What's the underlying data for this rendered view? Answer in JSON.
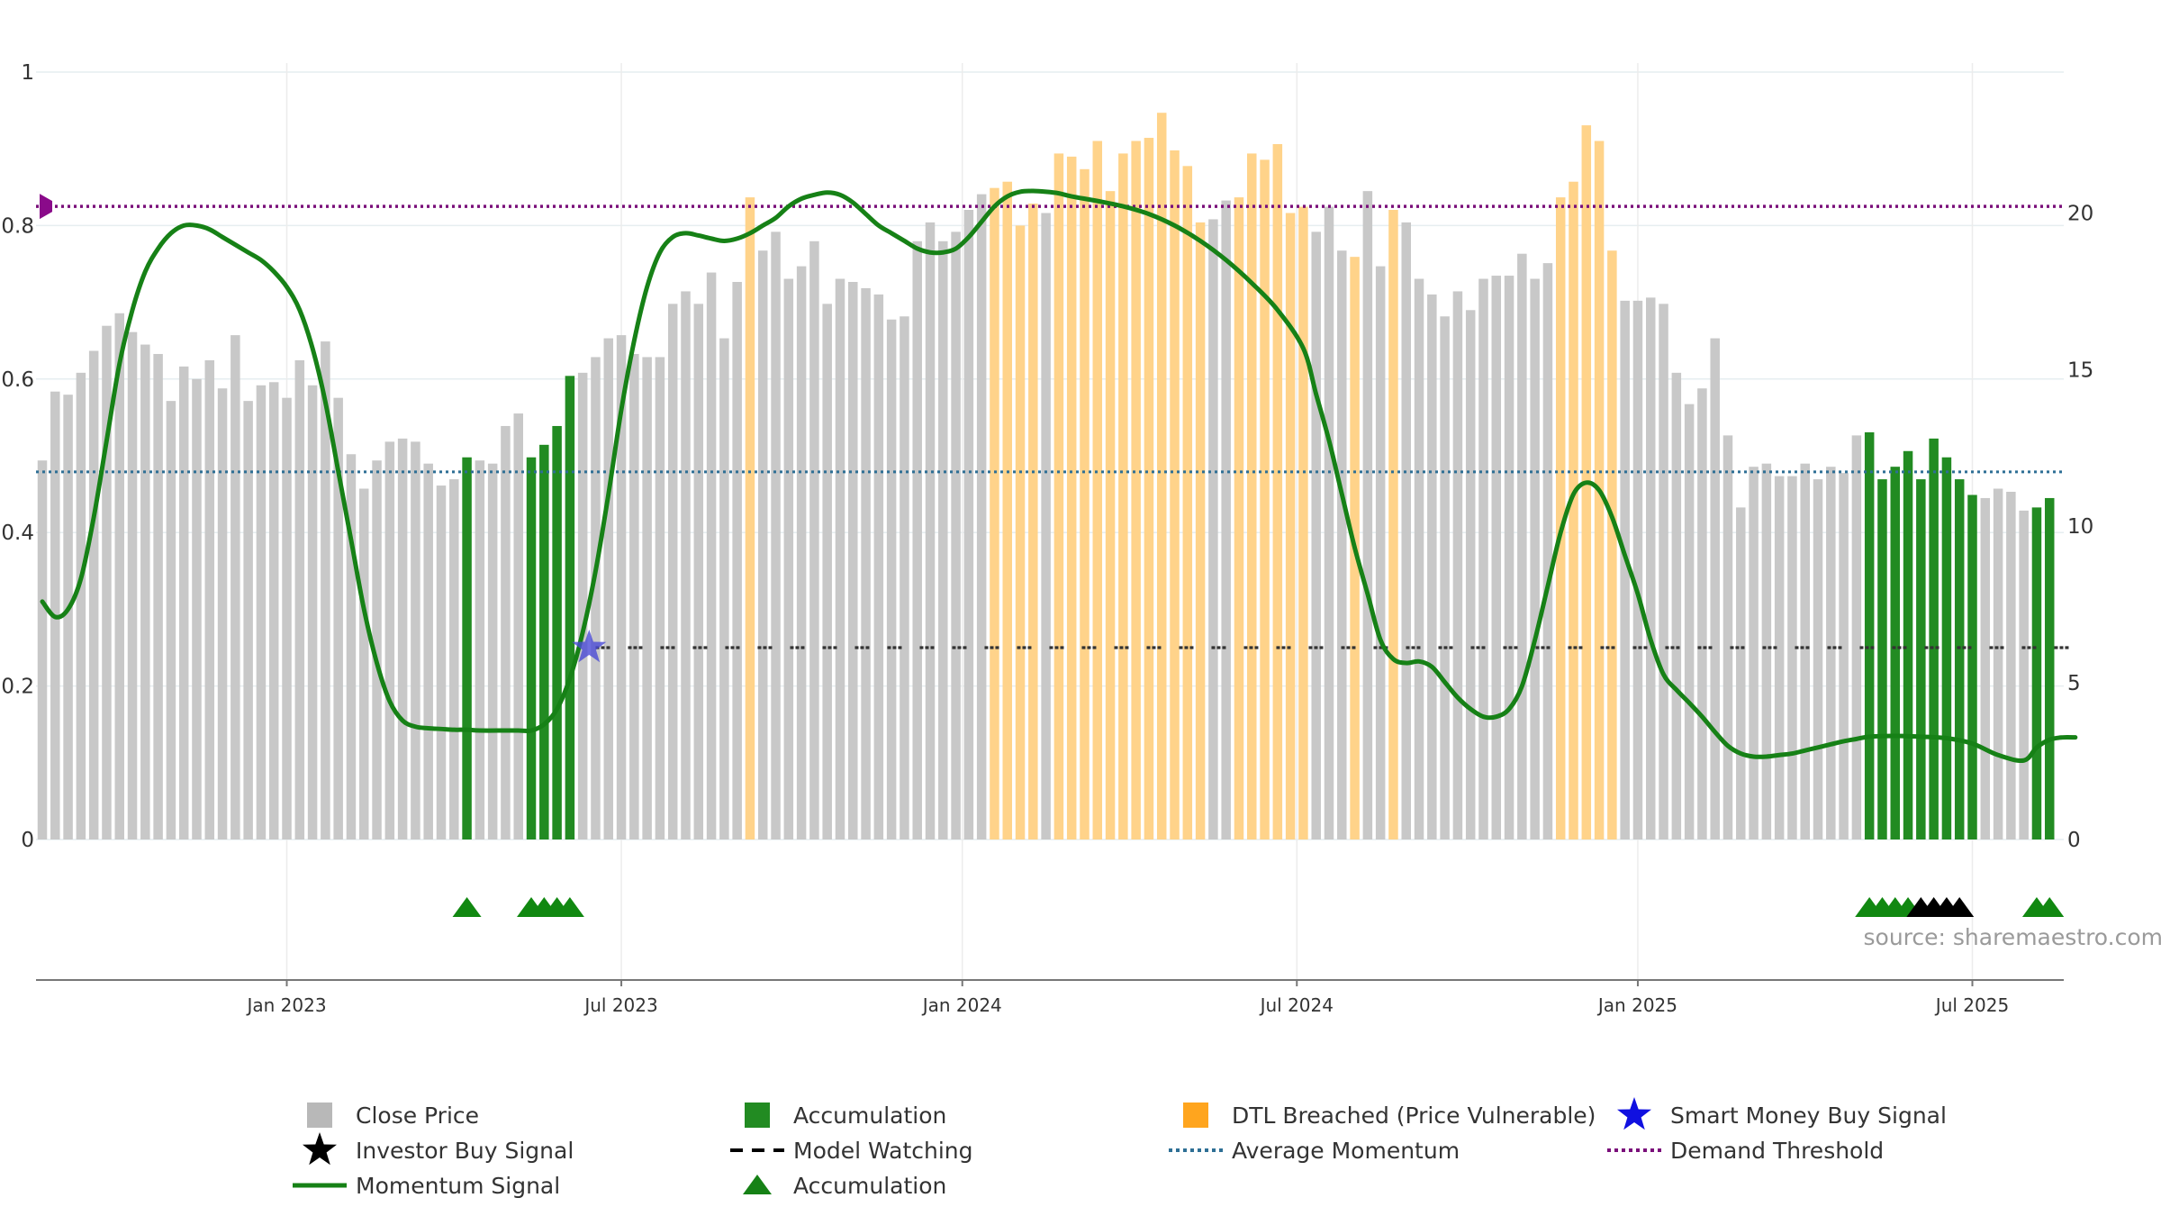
{
  "chart_data": {
    "type": "bar",
    "title": "",
    "source_label": "source: sharemaestro.com",
    "y_left": {
      "ticks": [
        "0",
        "0.2",
        "0.4",
        "0.6",
        "0.8",
        "1"
      ],
      "range": [
        0,
        1
      ]
    },
    "y_right": {
      "ticks": [
        "0",
        "5",
        "10",
        "15",
        "20"
      ],
      "range": [
        0,
        24.5
      ]
    },
    "x_ticks": [
      {
        "label": "Jan 2023",
        "week": 19
      },
      {
        "label": "Jul 2023",
        "week": 45
      },
      {
        "label": "Jan 2024",
        "week": 71.5
      },
      {
        "label": "Jul 2024",
        "week": 97.5
      },
      {
        "label": "Jan 2025",
        "week": 124
      },
      {
        "label": "Jul 2025",
        "week": 150
      }
    ],
    "bars": {
      "name": "Close Price (weekly)",
      "values": [
        12.1,
        14.3,
        14.2,
        14.9,
        15.6,
        16.4,
        16.8,
        16.2,
        15.8,
        15.5,
        14.0,
        15.1,
        14.7,
        15.3,
        14.4,
        16.1,
        14.0,
        14.5,
        14.6,
        14.1,
        15.3,
        14.5,
        15.9,
        14.1,
        12.3,
        11.2,
        12.1,
        12.7,
        12.8,
        12.7,
        12.0,
        11.3,
        11.5,
        12.2,
        12.1,
        12.0,
        13.2,
        13.6,
        12.2,
        12.6,
        13.2,
        14.8,
        14.9,
        15.4,
        16.0,
        16.1,
        15.5,
        15.4,
        15.4,
        17.1,
        17.5,
        17.1,
        18.1,
        16.0,
        17.8,
        20.5,
        18.8,
        19.4,
        17.9,
        18.3,
        19.1,
        17.1,
        17.9,
        17.8,
        17.6,
        17.4,
        16.6,
        16.7,
        19.1,
        19.7,
        19.1,
        19.4,
        20.1,
        20.6,
        20.8,
        21.0,
        19.6,
        20.3,
        20.0,
        21.9,
        21.8,
        21.4,
        22.3,
        20.7,
        21.9,
        22.3,
        22.4,
        23.2,
        22.0,
        21.5,
        19.7,
        19.8,
        20.4,
        20.5,
        21.9,
        21.7,
        22.2,
        20.0,
        20.2,
        19.4,
        20.2,
        18.8,
        18.6,
        20.7,
        18.3,
        20.1,
        19.7,
        17.9,
        17.4,
        16.7,
        17.5,
        16.9,
        17.9,
        18.0,
        18.0,
        18.7,
        17.9,
        18.4,
        20.5,
        21.0,
        22.8,
        22.3,
        18.8,
        17.2,
        17.2,
        17.3,
        17.1,
        14.9,
        13.9,
        14.4,
        16.0,
        12.9,
        10.6,
        11.9,
        12.0,
        11.6,
        11.6,
        12.0,
        11.5,
        11.9,
        11.7,
        12.9,
        13.0,
        11.5,
        11.9,
        12.4,
        11.5,
        12.8,
        12.2,
        11.5,
        11.0,
        10.9,
        11.2,
        11.1,
        10.5,
        10.6,
        10.9
      ],
      "category_colors": {
        "close": "#c8c8c8",
        "accumulation": "#228b22",
        "dtl": "#ffd38a"
      },
      "accumulation_weeks": [
        33,
        38,
        39,
        40,
        41,
        142,
        143,
        144,
        145,
        146,
        147,
        148,
        149,
        150,
        155,
        156
      ],
      "dtl_weeks": [
        55,
        74,
        75,
        76,
        77,
        79,
        80,
        81,
        82,
        83,
        84,
        85,
        86,
        87,
        88,
        89,
        90,
        93,
        94,
        95,
        96,
        97,
        98,
        102,
        105,
        118,
        119,
        120,
        121,
        122
      ]
    },
    "series": [
      {
        "name": "Momentum Signal",
        "axis": "left",
        "color": "#168116",
        "x": [
          0,
          1,
          2,
          3,
          4,
          5,
          6,
          7,
          8,
          9,
          10,
          11,
          12,
          13,
          14,
          15,
          16,
          17,
          18,
          19,
          20,
          21,
          22,
          23,
          24,
          25,
          26,
          27,
          28,
          29,
          30,
          31,
          32,
          33,
          34,
          36,
          37,
          38,
          39,
          40,
          41,
          42,
          43,
          44,
          45,
          46,
          47,
          48,
          49,
          50,
          51,
          52,
          53,
          54,
          55,
          56,
          57,
          58,
          59,
          60,
          61,
          62,
          63,
          64,
          65,
          66,
          67,
          68,
          69,
          70,
          71,
          72,
          73,
          74,
          75,
          76,
          77,
          78,
          79,
          80,
          82,
          84,
          86,
          88,
          90,
          92,
          94,
          96,
          98,
          99,
          100,
          101,
          102,
          103,
          104,
          105,
          106,
          107,
          108,
          109,
          110,
          111,
          112,
          113,
          114,
          115,
          116,
          117,
          118,
          119,
          120,
          121,
          122,
          123,
          124,
          125,
          126,
          127,
          128,
          129,
          130,
          131,
          132,
          133,
          134,
          135,
          136,
          137,
          138,
          139,
          140,
          141,
          142,
          144,
          146,
          148,
          150,
          152,
          154,
          155,
          156,
          157,
          158
        ],
        "values": [
          0.31,
          0.29,
          0.3,
          0.34,
          0.42,
          0.52,
          0.62,
          0.69,
          0.74,
          0.77,
          0.79,
          0.8,
          0.8,
          0.795,
          0.785,
          0.775,
          0.765,
          0.755,
          0.74,
          0.72,
          0.69,
          0.64,
          0.57,
          0.48,
          0.39,
          0.3,
          0.23,
          0.18,
          0.155,
          0.147,
          0.145,
          0.144,
          0.143,
          0.143,
          0.142,
          0.142,
          0.142,
          0.142,
          0.15,
          0.17,
          0.21,
          0.27,
          0.35,
          0.45,
          0.56,
          0.65,
          0.72,
          0.765,
          0.785,
          0.79,
          0.787,
          0.783,
          0.78,
          0.783,
          0.79,
          0.8,
          0.81,
          0.825,
          0.835,
          0.84,
          0.843,
          0.84,
          0.83,
          0.815,
          0.8,
          0.79,
          0.78,
          0.77,
          0.765,
          0.765,
          0.77,
          0.785,
          0.805,
          0.825,
          0.838,
          0.844,
          0.845,
          0.844,
          0.842,
          0.838,
          0.832,
          0.825,
          0.815,
          0.8,
          0.78,
          0.755,
          0.725,
          0.69,
          0.64,
          0.58,
          0.52,
          0.45,
          0.38,
          0.32,
          0.26,
          0.235,
          0.23,
          0.232,
          0.225,
          0.205,
          0.185,
          0.17,
          0.16,
          0.16,
          0.17,
          0.2,
          0.26,
          0.33,
          0.4,
          0.45,
          0.465,
          0.455,
          0.42,
          0.37,
          0.32,
          0.26,
          0.215,
          0.195,
          0.178,
          0.16,
          0.14,
          0.122,
          0.112,
          0.108,
          0.108,
          0.11,
          0.112,
          0.116,
          0.12,
          0.124,
          0.128,
          0.131,
          0.134,
          0.135,
          0.134,
          0.132,
          0.125,
          0.11,
          0.103,
          0.12,
          0.13,
          0.133,
          0.133
        ]
      },
      {
        "name": "Average Momentum",
        "axis": "left",
        "color": "#2e6f95",
        "value": 0.479
      },
      {
        "name": "Demand Threshold",
        "axis": "left",
        "color": "#7a0f7a",
        "value": 0.825
      },
      {
        "name": "Model Watching",
        "axis": "left",
        "color": "#333333",
        "value": 0.25,
        "x_start": 43,
        "x_end": 158
      }
    ],
    "markers": {
      "smart_money_buy_signal": {
        "week": 42.5,
        "value": 0.25,
        "color": "#4b4bd6"
      },
      "accumulation_triangles_weeks": [
        33,
        38,
        39,
        40,
        41,
        142,
        143,
        144,
        145,
        155,
        156
      ],
      "investor_buy_triangles_weeks": [
        146,
        147,
        148,
        149
      ],
      "demand_marker": {
        "week": 0,
        "value": 0.825
      }
    },
    "legend": [
      {
        "label": "Close Price",
        "symbol": "square",
        "color": "#b8b8b8"
      },
      {
        "label": "Accumulation",
        "symbol": "square",
        "color": "#228b22"
      },
      {
        "label": "DTL Breached (Price Vulnerable)",
        "symbol": "square",
        "color": "#ffa51e"
      },
      {
        "label": "Smart Money Buy Signal",
        "symbol": "star",
        "color": "#1010e0"
      },
      {
        "label": "Investor Buy Signal",
        "symbol": "star",
        "color": "#000000"
      },
      {
        "label": "Model Watching",
        "symbol": "dash",
        "color": "#000000"
      },
      {
        "label": "Average Momentum",
        "symbol": "dotted",
        "color": "#2e6f95"
      },
      {
        "label": "Demand Threshold",
        "symbol": "dotted",
        "color": "#7a0f7a"
      },
      {
        "label": "Momentum Signal",
        "symbol": "line",
        "color": "#168116"
      },
      {
        "label": "Accumulation",
        "symbol": "triangle",
        "color": "#168116"
      }
    ]
  }
}
